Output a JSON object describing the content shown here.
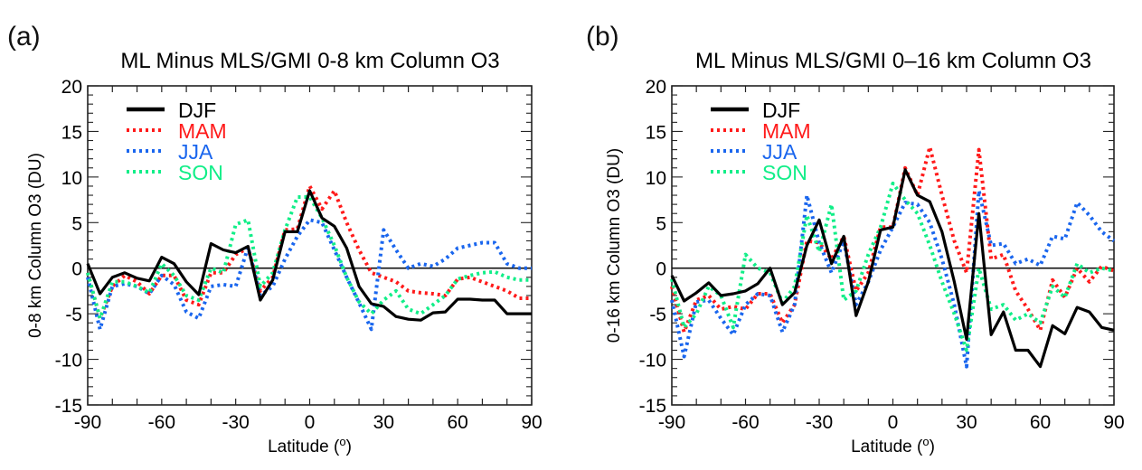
{
  "chart_data": [
    {
      "type": "line",
      "panel_label": "(a)",
      "title": "ML Minus MLS/GMI 0-8 km Column O3",
      "xlabel": "Latitude (°)",
      "xlabel_main": "Latitude (",
      "xlabel_sup": "o",
      "xlabel_close": ")",
      "ylabel": "0-8 km Column O3 (DU)",
      "xlim": [
        -90,
        90
      ],
      "ylim": [
        -15,
        20
      ],
      "xticks": [
        -90,
        -60,
        -30,
        0,
        30,
        60,
        90
      ],
      "xtick_labels": [
        "-90",
        "-60",
        "-30",
        "0",
        "30",
        "60",
        "90"
      ],
      "yticks": [
        -15,
        -10,
        -5,
        0,
        5,
        10,
        15,
        20
      ],
      "ytick_labels": [
        "-15",
        "-10",
        "-5",
        "0",
        "5",
        "10",
        "15",
        "20"
      ],
      "zero_line": true,
      "legend_position": "top-left",
      "x": [
        -90,
        -85,
        -80,
        -75,
        -70,
        -65,
        -60,
        -55,
        -50,
        -45,
        -40,
        -35,
        -30,
        -25,
        -20,
        -15,
        -10,
        -5,
        0,
        5,
        10,
        15,
        20,
        25,
        30,
        35,
        40,
        45,
        50,
        55,
        60,
        65,
        70,
        75,
        80,
        85,
        90
      ],
      "series": [
        {
          "name": "DJF",
          "color": "#000000",
          "style": "solid",
          "values": [
            0.5,
            -2.8,
            -1,
            -0.5,
            -1.1,
            -1.4,
            1.2,
            0.5,
            -1.5,
            -2.9,
            2.7,
            2,
            1.7,
            2.4,
            -3.5,
            -1.3,
            4,
            4,
            8.5,
            5.5,
            4.6,
            2.2,
            -2,
            -3.9,
            -4.2,
            -5.3,
            -5.6,
            -5.7,
            -4.9,
            -4.8,
            -3.4,
            -3.4,
            -3.5,
            -3.5,
            -5,
            -5,
            -5
          ]
        },
        {
          "name": "MAM",
          "color": "#ff1a1a",
          "style": "dotted",
          "values": [
            -0.5,
            -5.5,
            -2,
            -0.8,
            -1.5,
            -2.8,
            -0.8,
            -0.8,
            -3.5,
            -4,
            -0.5,
            -0.5,
            1.5,
            2.2,
            -2.5,
            -1,
            4.2,
            4.3,
            9,
            6.5,
            8.5,
            5,
            2,
            -0.5,
            -1,
            -1.5,
            -2.5,
            -2.7,
            -2.8,
            -3,
            -1.2,
            -1,
            -1.5,
            -2,
            -2.5,
            -3.3,
            -3.3
          ]
        },
        {
          "name": "JJA",
          "color": "#1a66ee",
          "style": "dotted",
          "values": [
            -1,
            -6.7,
            -2,
            -1.7,
            -2,
            -2.8,
            -0.8,
            -1.8,
            -4.8,
            -5.5,
            -2,
            -1.8,
            -2,
            2.3,
            -3,
            -2,
            1,
            3.5,
            5.3,
            5,
            2,
            -1,
            -3.8,
            -6.7,
            4.2,
            2,
            0,
            0.5,
            0.2,
            1,
            2.2,
            2.5,
            2.8,
            2.8,
            0.5,
            0,
            0
          ]
        },
        {
          "name": "SON",
          "color": "#11ee88",
          "style": "dotted",
          "values": [
            -0.5,
            -5.5,
            -1.5,
            -1.5,
            -2,
            -2.7,
            0.5,
            -0.8,
            -3,
            -3.5,
            0,
            -0.5,
            4.8,
            5.3,
            -2,
            -0.5,
            4.2,
            7.8,
            7.8,
            5.5,
            2.5,
            -1,
            -3.7,
            -5,
            -3.5,
            -2.5,
            -4.5,
            -5,
            -4,
            -3,
            -1.2,
            -0.8,
            -0.5,
            -0.4,
            -1,
            -1.3,
            -1.3
          ]
        }
      ]
    },
    {
      "type": "line",
      "panel_label": "(b)",
      "title": "ML Minus MLS/GMI 0–16 km Column O3",
      "xlabel": "Latitude (°)",
      "xlabel_main": "Latitude (",
      "xlabel_sup": "o",
      "xlabel_close": ")",
      "ylabel": "0-16 km Column O3 (DU)",
      "xlim": [
        -90,
        90
      ],
      "ylim": [
        -15,
        20
      ],
      "xticks": [
        -90,
        -60,
        -30,
        0,
        30,
        60,
        90
      ],
      "xtick_labels": [
        "-90",
        "-60",
        "-30",
        "0",
        "30",
        "60",
        "90"
      ],
      "yticks": [
        -15,
        -10,
        -5,
        0,
        5,
        10,
        15,
        20
      ],
      "ytick_labels": [
        "-15",
        "-10",
        "-5",
        "0",
        "5",
        "10",
        "15",
        "20"
      ],
      "zero_line": true,
      "legend_position": "top-left",
      "x": [
        -90,
        -85,
        -80,
        -75,
        -70,
        -65,
        -60,
        -55,
        -50,
        -45,
        -40,
        -35,
        -30,
        -25,
        -20,
        -15,
        -10,
        -5,
        0,
        5,
        10,
        15,
        20,
        25,
        30,
        35,
        40,
        45,
        50,
        55,
        60,
        65,
        70,
        75,
        80,
        85,
        90
      ],
      "series": [
        {
          "name": "DJF",
          "color": "#000000",
          "style": "solid",
          "values": [
            -0.8,
            -3.6,
            -2.7,
            -1.6,
            -3,
            -2.8,
            -2.5,
            -1.7,
            0,
            -4,
            -2.7,
            2.5,
            5.3,
            0.5,
            3.5,
            -5.2,
            -1.5,
            4.2,
            4.5,
            10.8,
            8,
            7.3,
            4,
            -1.5,
            -7.8,
            6,
            -7.3,
            -4.8,
            -9,
            -9,
            -10.8,
            -6.3,
            -7.2,
            -4.3,
            -4.8,
            -6.5,
            -6.8
          ]
        },
        {
          "name": "MAM",
          "color": "#ff1a1a",
          "style": "dotted",
          "values": [
            -2,
            -7,
            -3.5,
            -3,
            -4.5,
            -4.2,
            -4.5,
            -2.8,
            -2.8,
            -6,
            -4,
            3,
            2.8,
            1,
            3.5,
            -2.5,
            -0.5,
            4.5,
            4.5,
            11,
            8,
            13.3,
            8,
            3,
            -0.5,
            13,
            1,
            1.5,
            -2.5,
            -4.5,
            -6.8,
            -1.3,
            -3.2,
            0,
            -1.5,
            0.2,
            -0.3
          ]
        },
        {
          "name": "JJA",
          "color": "#1a66ee",
          "style": "dotted",
          "values": [
            -3.5,
            -9.7,
            -3.7,
            -3.5,
            -5.5,
            -7.3,
            -4,
            -2.8,
            -3,
            -7,
            -4,
            8,
            2.8,
            -0.5,
            3,
            -4,
            -1.5,
            2,
            4.5,
            7.2,
            7,
            5,
            1,
            -4,
            -10.8,
            8.5,
            2.5,
            2.7,
            0.5,
            1,
            0.3,
            3.5,
            3.2,
            7.2,
            5.8,
            4,
            3
          ]
        },
        {
          "name": "SON",
          "color": "#11ee88",
          "style": "dotted",
          "values": [
            -1.2,
            -6.5,
            -5,
            -2,
            -3,
            -6.5,
            1.5,
            0,
            -0.5,
            -3.8,
            -2,
            5.8,
            1.8,
            7,
            -3.5,
            -2.5,
            1.5,
            4.5,
            9.3,
            7.5,
            6,
            2.5,
            -1.5,
            -5,
            -9,
            0,
            -4.5,
            -4,
            -5.7,
            -5,
            -6,
            -2,
            -3.2,
            0.5,
            -0.5,
            0,
            -0.3
          ]
        }
      ]
    }
  ]
}
